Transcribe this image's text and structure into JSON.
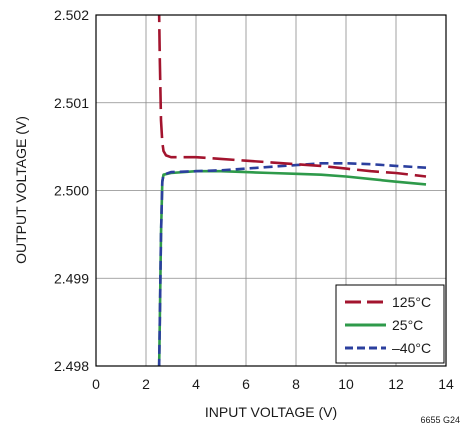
{
  "chart_data": {
    "type": "line",
    "xlabel": "INPUT VOLTAGE (V)",
    "ylabel": "OUTPUT VOLTAGE (V)",
    "xlim": [
      0,
      14
    ],
    "ylim": [
      2.498,
      2.502
    ],
    "xticks": [
      0,
      2,
      4,
      6,
      8,
      10,
      12,
      14
    ],
    "yticks": [
      2.498,
      2.499,
      2.5,
      2.501,
      2.502
    ],
    "xtick_labels": [
      "0",
      "2",
      "4",
      "6",
      "8",
      "10",
      "12",
      "14"
    ],
    "ytick_labels": [
      "2.498",
      "2.499",
      "2.500",
      "2.501",
      "2.502"
    ],
    "grid": true,
    "legend_position": "bottom-right",
    "figure_code": "6655 G24",
    "series": [
      {
        "name": "125°C",
        "color": "#a3142e",
        "dash": "long-dash",
        "x": [
          2.5,
          2.55,
          2.6,
          2.65,
          2.7,
          2.8,
          3.0,
          3.5,
          4.0,
          5.0,
          6.0,
          7.0,
          8.0,
          9.0,
          10.0,
          11.0,
          12.0,
          13.2
        ],
        "y": [
          2.5025,
          2.5015,
          2.5008,
          2.50055,
          2.50045,
          2.5004,
          2.50038,
          2.50038,
          2.50038,
          2.50036,
          2.50034,
          2.50032,
          2.5003,
          2.50028,
          2.50025,
          2.50022,
          2.5002,
          2.50016
        ]
      },
      {
        "name": "25°C",
        "color": "#2e9a4a",
        "dash": "solid",
        "x": [
          2.5,
          2.55,
          2.6,
          2.65,
          2.7,
          3.0,
          4.0,
          5.0,
          6.0,
          7.0,
          8.0,
          9.0,
          10.0,
          11.0,
          12.0,
          13.2
        ],
        "y": [
          2.4975,
          2.4985,
          2.4995,
          2.5001,
          2.50018,
          2.5002,
          2.50022,
          2.50022,
          2.50021,
          2.5002,
          2.50019,
          2.50018,
          2.50016,
          2.50013,
          2.5001,
          2.50007
        ]
      },
      {
        "name": "–40°C",
        "color": "#2b3f9e",
        "dash": "short-dash",
        "x": [
          2.5,
          2.55,
          2.6,
          2.65,
          2.7,
          3.0,
          4.0,
          5.0,
          6.0,
          7.0,
          8.0,
          9.0,
          10.0,
          11.0,
          12.0,
          13.2
        ],
        "y": [
          2.4975,
          2.4985,
          2.4995,
          2.5001,
          2.50018,
          2.50021,
          2.50022,
          2.50023,
          2.50025,
          2.50027,
          2.50029,
          2.50031,
          2.50031,
          2.5003,
          2.50028,
          2.50026
        ]
      }
    ]
  }
}
